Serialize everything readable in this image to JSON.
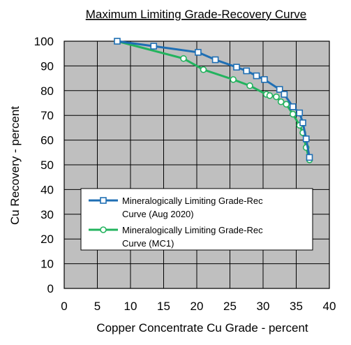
{
  "chart_data": {
    "type": "line",
    "title": "Maximum Limiting Grade-Recovery Curve",
    "xlabel": "Copper Concentrate Cu Grade - percent",
    "ylabel": "Cu Recovery - percent",
    "xlim": [
      0,
      40
    ],
    "ylim": [
      0,
      100
    ],
    "xticks": [
      0,
      5,
      10,
      15,
      20,
      25,
      30,
      35,
      40
    ],
    "yticks": [
      0,
      10,
      20,
      30,
      40,
      50,
      60,
      70,
      80,
      90,
      100
    ],
    "grid": true,
    "plot_background": "#bfbfbf",
    "legend_position": "lower-left",
    "series": [
      {
        "name": "Mineralogically Limiting Grade-Rec Curve (Aug 2020)",
        "legend_lines": [
          "Mineralogically Limiting Grade-Rec",
          "Curve (Aug 2020)"
        ],
        "color": "#1f6fb4",
        "marker": "square",
        "x": [
          8.0,
          13.5,
          20.2,
          22.8,
          26.0,
          27.5,
          29.0,
          30.2,
          32.5,
          33.2,
          34.5,
          35.5,
          36.0,
          36.5,
          37.0
        ],
        "y": [
          100,
          98,
          95.5,
          92.5,
          89.5,
          88,
          86,
          84.5,
          80.5,
          78.5,
          73.5,
          71,
          67,
          60.5,
          53
        ]
      },
      {
        "name": "Mineralogically Limiting Grade-Rec Curve (MC1)",
        "legend_lines": [
          "Mineralogically Limiting Grade-Rec",
          "Curve (MC1)"
        ],
        "color": "#22b35e",
        "marker": "circle",
        "x": [
          8.0,
          18.0,
          21.0,
          25.5,
          28.0,
          30.5,
          31.0,
          32.0,
          32.7,
          33.5,
          34.5,
          35.5,
          36.0,
          36.5,
          37.0
        ],
        "y": [
          100,
          93,
          88.5,
          84.5,
          82,
          78.5,
          78,
          77.5,
          75.5,
          74.5,
          70.5,
          66,
          63,
          57,
          52
        ]
      }
    ]
  }
}
